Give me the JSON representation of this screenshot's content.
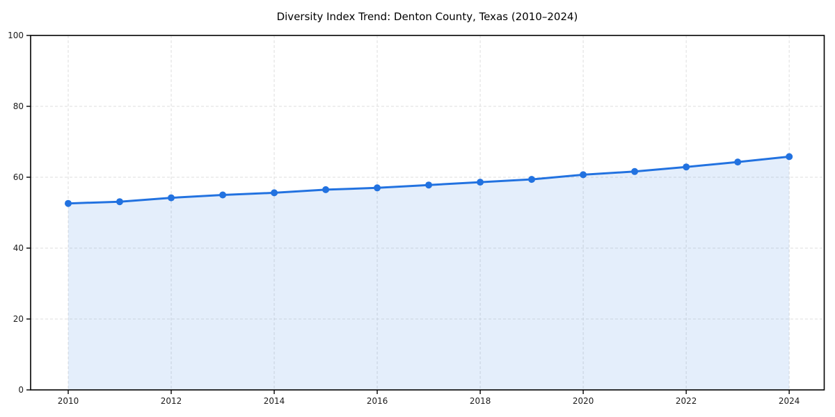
{
  "chart_data": {
    "type": "area",
    "title": "Diversity Index Trend: Denton County, Texas (2010–2024)",
    "xlabel": "",
    "ylabel": "",
    "x": [
      2010,
      2011,
      2012,
      2013,
      2014,
      2015,
      2016,
      2017,
      2018,
      2019,
      2020,
      2021,
      2022,
      2023,
      2024
    ],
    "values": [
      52.6,
      53.1,
      54.2,
      55.0,
      55.6,
      56.5,
      57.0,
      57.8,
      58.6,
      59.4,
      60.7,
      61.6,
      62.9,
      64.3,
      65.8
    ],
    "xticks": [
      2010,
      2012,
      2014,
      2016,
      2018,
      2020,
      2022,
      2024
    ],
    "yticks": [
      0,
      20,
      40,
      60,
      80,
      100
    ],
    "ylim": [
      0,
      100
    ],
    "grid": true,
    "grid_style": "dashed",
    "legend": "none",
    "marker": "circle",
    "colors": {
      "line": "#2272e0",
      "marker": "#2272e0",
      "fill": "rgba(34, 114, 224, 0.12)",
      "grid": "#dedede",
      "spine": "#000000",
      "tick_text": "#1a1a1a",
      "title_text": "#000000",
      "background": "#ffffff"
    }
  }
}
